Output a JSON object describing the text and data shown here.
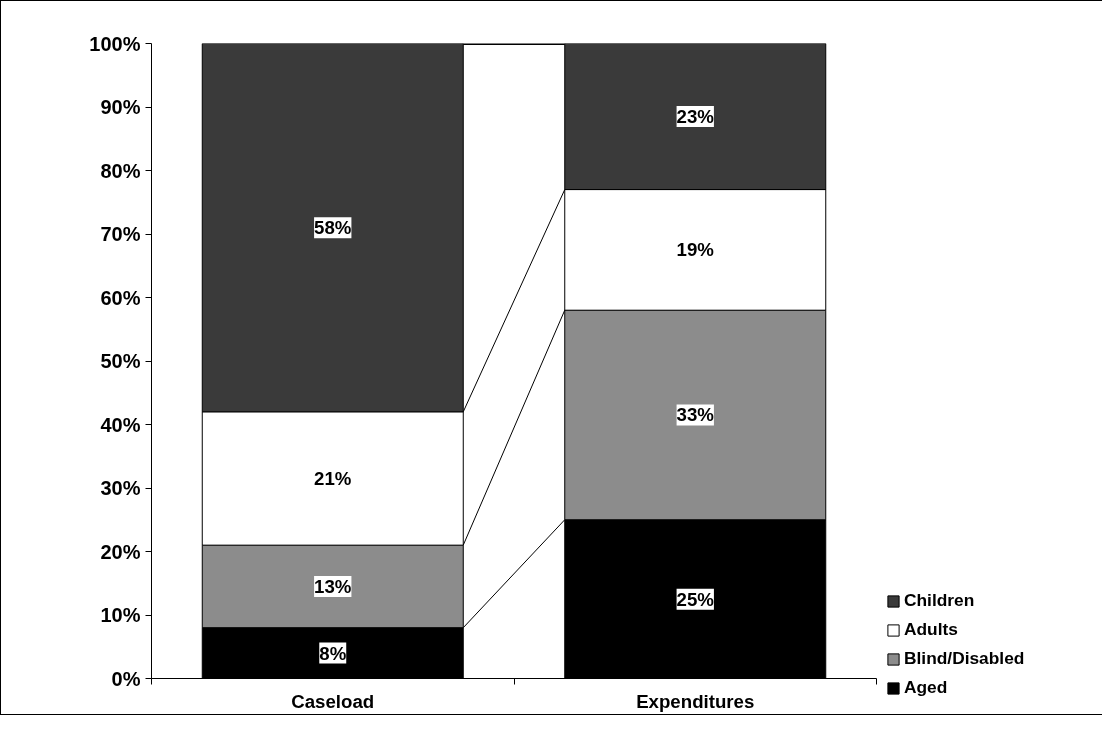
{
  "chart_data": {
    "type": "bar",
    "stacked": true,
    "categories": [
      "Caseload",
      "Expenditures"
    ],
    "series": [
      {
        "name": "Aged",
        "color": "#000000",
        "values": [
          8,
          25
        ],
        "value_labels": [
          "8%",
          "25%"
        ]
      },
      {
        "name": "Blind/Disabled",
        "color": "#8c8c8c",
        "values": [
          13,
          33
        ],
        "value_labels": [
          "13%",
          "33%"
        ]
      },
      {
        "name": "Adults",
        "color": "#ffffff",
        "values": [
          21,
          19
        ],
        "value_labels": [
          "21%",
          "19%"
        ]
      },
      {
        "name": "Children",
        "color": "#3a3a3a",
        "values": [
          58,
          23
        ],
        "value_labels": [
          "58%",
          "23%"
        ]
      }
    ],
    "ylim": [
      0,
      100
    ],
    "yticks": [
      {
        "value": 0,
        "label": "0%"
      },
      {
        "value": 10,
        "label": "10%"
      },
      {
        "value": 20,
        "label": "20%"
      },
      {
        "value": 30,
        "label": "30%"
      },
      {
        "value": 40,
        "label": "40%"
      },
      {
        "value": 50,
        "label": "50%"
      },
      {
        "value": 60,
        "label": "60%"
      },
      {
        "value": 70,
        "label": "70%"
      },
      {
        "value": 80,
        "label": "80%"
      },
      {
        "value": 90,
        "label": "90%"
      },
      {
        "value": 100,
        "label": "100%"
      }
    ],
    "legend": "bottom right",
    "grid": false
  }
}
